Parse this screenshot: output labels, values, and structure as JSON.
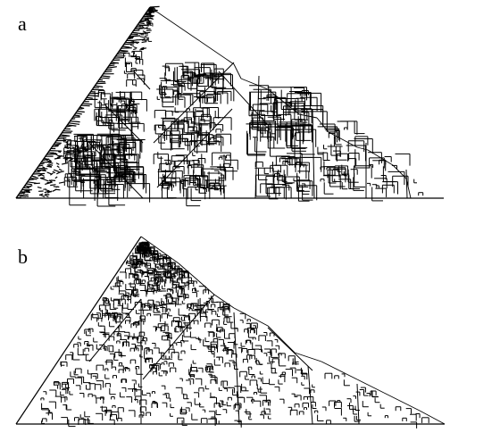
{
  "figure": {
    "panels": [
      {
        "label": "a",
        "description_key": "tiling-panel-a"
      },
      {
        "label": "b",
        "description_key": "tiling-panel-b"
      }
    ]
  },
  "style": {
    "stroke_color": "#000000",
    "background": "#ffffff"
  }
}
